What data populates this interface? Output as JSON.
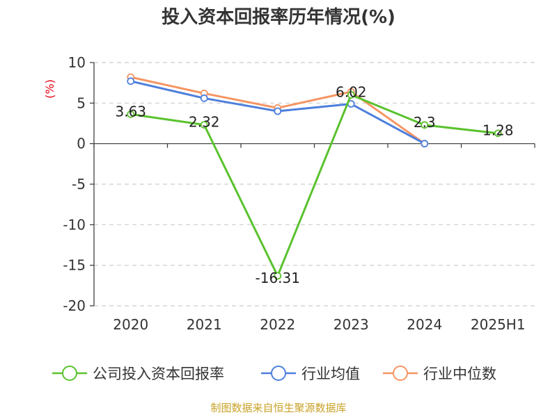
{
  "chart_data": {
    "type": "line",
    "title": "投入资本回报率历年情况(%)",
    "unit_label": "(%)",
    "categories": [
      "2020",
      "2021",
      "2022",
      "2023",
      "2024",
      "2025H1"
    ],
    "ylim": [
      -20,
      10
    ],
    "yticks": [
      10,
      5,
      0,
      -5,
      -10,
      -15,
      -20
    ],
    "grid": true,
    "legend_position": "bottom",
    "series": [
      {
        "name": "公司投入资本回报率",
        "color": "#5ac22e",
        "values": [
          3.63,
          2.32,
          -16.31,
          6.02,
          2.3,
          1.28
        ],
        "labels": [
          "3.63",
          "2.32",
          "-16.31",
          "6.02",
          "2.3",
          "1.28"
        ]
      },
      {
        "name": "行业均值",
        "color": "#4d7fdc",
        "values": [
          7.7,
          5.6,
          4.0,
          4.9,
          0.0,
          null
        ]
      },
      {
        "name": "行业中位数",
        "color": "#f59563",
        "values": [
          8.2,
          6.2,
          4.4,
          6.4,
          0.0,
          null
        ]
      }
    ]
  },
  "source": "制图数据来自恒生聚源数据库"
}
